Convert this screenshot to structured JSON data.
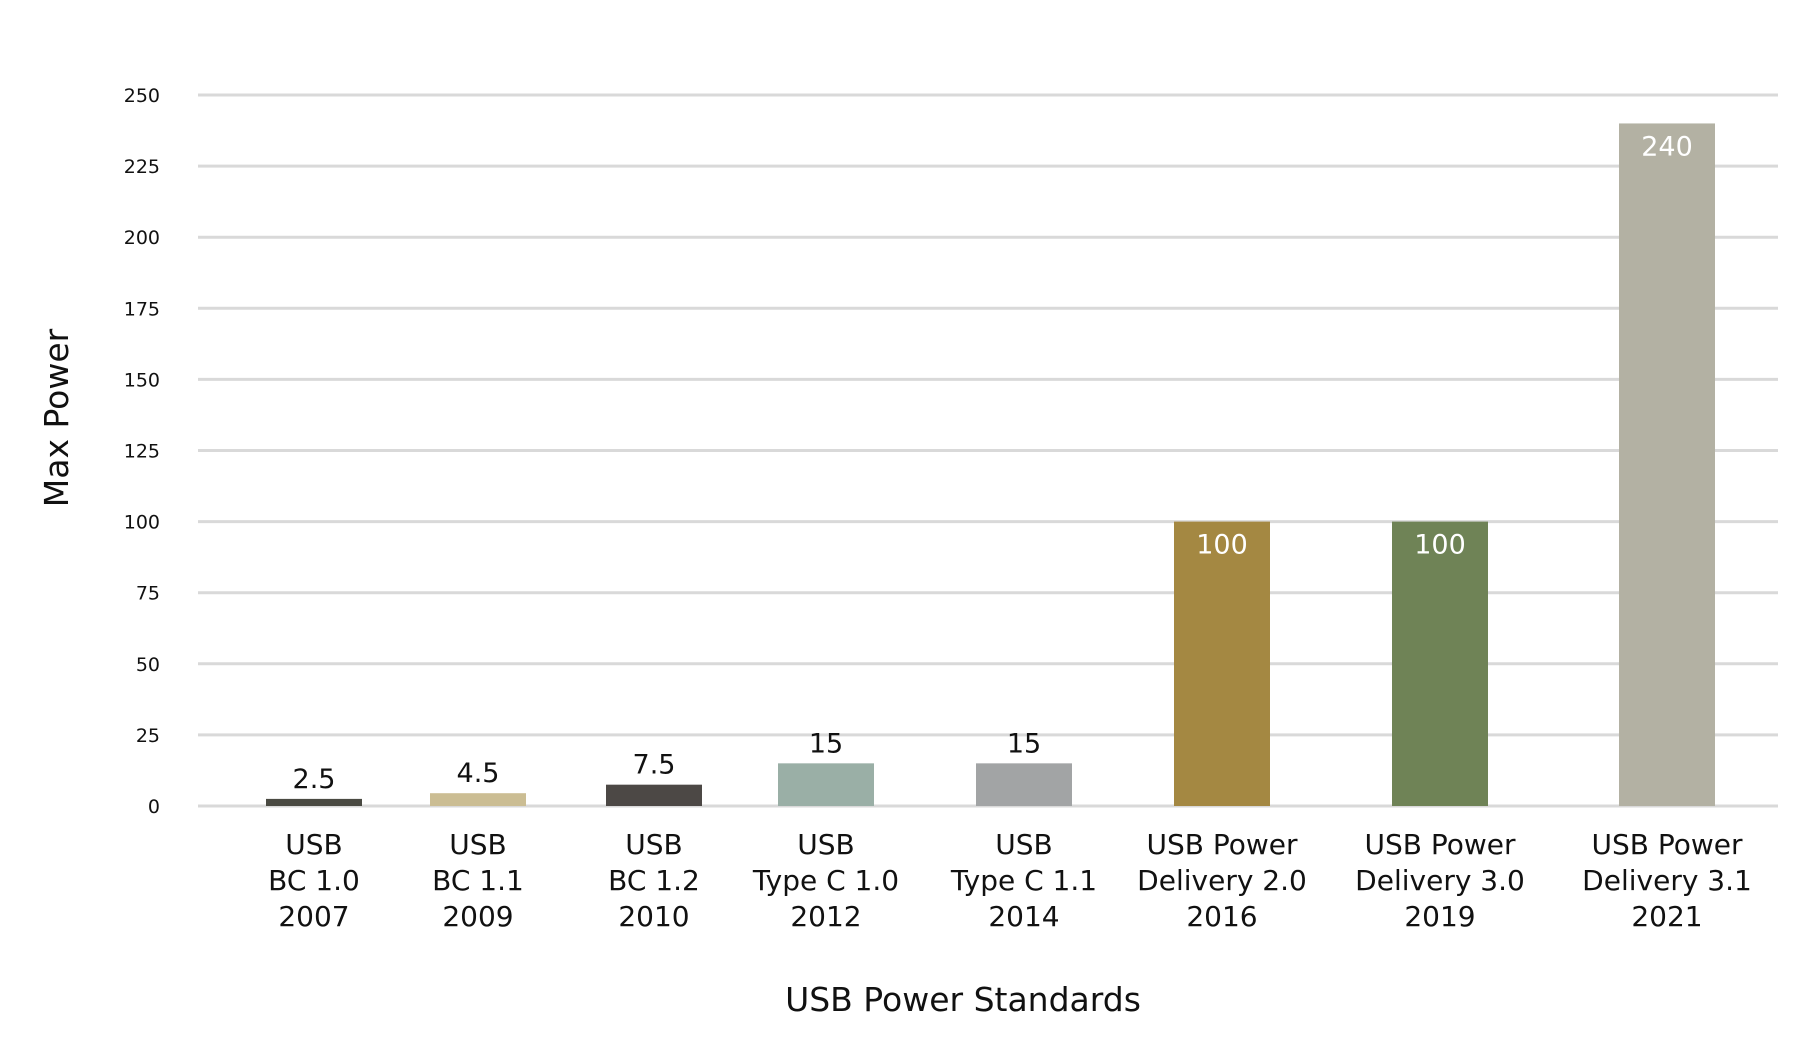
{
  "chart_data": {
    "type": "bar",
    "title": "",
    "xlabel": "USB Power Standards",
    "ylabel": "Max Power",
    "ylim": [
      0,
      250
    ],
    "yticks": [
      0,
      25,
      50,
      75,
      100,
      125,
      150,
      175,
      200,
      225,
      250
    ],
    "grid": true,
    "legend": "none",
    "categories": [
      [
        "USB",
        "BC 1.0",
        "2007"
      ],
      [
        "USB",
        "BC 1.1",
        "2009"
      ],
      [
        "USB",
        "BC 1.2",
        "2010"
      ],
      [
        "USB",
        "Type C 1.0",
        "2012"
      ],
      [
        "USB",
        "Type C 1.1",
        "2014"
      ],
      [
        "USB Power",
        "Delivery 2.0",
        "2016"
      ],
      [
        "USB Power",
        "Delivery 3.0",
        "2019"
      ],
      [
        "USB Power",
        "Delivery 3.1",
        "2021"
      ]
    ],
    "values": [
      2.5,
      4.5,
      7.5,
      15,
      15,
      100,
      100,
      240
    ],
    "data_labels": [
      "2.5",
      "4.5",
      "7.5",
      "15",
      "15",
      "100",
      "100",
      "240"
    ],
    "colors": [
      "#4a4a42",
      "#cbbd93",
      "#4c4845",
      "#9aafa6",
      "#a2a4a5",
      "#a48842",
      "#6f8356",
      "#b3b1a3"
    ],
    "label_colors": [
      "#111111",
      "#111111",
      "#111111",
      "#111111",
      "#111111",
      "#ffffff",
      "#ffffff",
      "#ffffff"
    ],
    "gridline_color": "#d9d9d9"
  }
}
